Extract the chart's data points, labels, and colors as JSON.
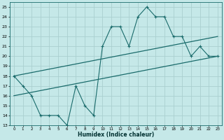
{
  "xlabel": "Humidex (Indice chaleur)",
  "bg_color": "#c5e8e8",
  "grid_color": "#aacfcf",
  "line_color": "#1a6b6b",
  "xlim": [
    -0.5,
    23.5
  ],
  "ylim": [
    13,
    25.5
  ],
  "yticks": [
    13,
    14,
    15,
    16,
    17,
    18,
    19,
    20,
    21,
    22,
    23,
    24,
    25
  ],
  "xticks": [
    0,
    1,
    2,
    3,
    4,
    5,
    6,
    7,
    8,
    9,
    10,
    11,
    12,
    13,
    14,
    15,
    16,
    17,
    18,
    19,
    20,
    21,
    22,
    23
  ],
  "line1_x": [
    0,
    1,
    2,
    3,
    4,
    5,
    6,
    7,
    8,
    9,
    10,
    11,
    12,
    13,
    14,
    15,
    16,
    17,
    18,
    19,
    20,
    21,
    22,
    23
  ],
  "line1_y": [
    18,
    17,
    16,
    14,
    14,
    14,
    13,
    17,
    15,
    14,
    21,
    23,
    23,
    21,
    24,
    25,
    24,
    24,
    22,
    22,
    20,
    21,
    20,
    20
  ],
  "line2_x": [
    0,
    23
  ],
  "line2_y": [
    18.0,
    22.0
  ],
  "line3_x": [
    0,
    23
  ],
  "line3_y": [
    16.0,
    20.0
  ]
}
